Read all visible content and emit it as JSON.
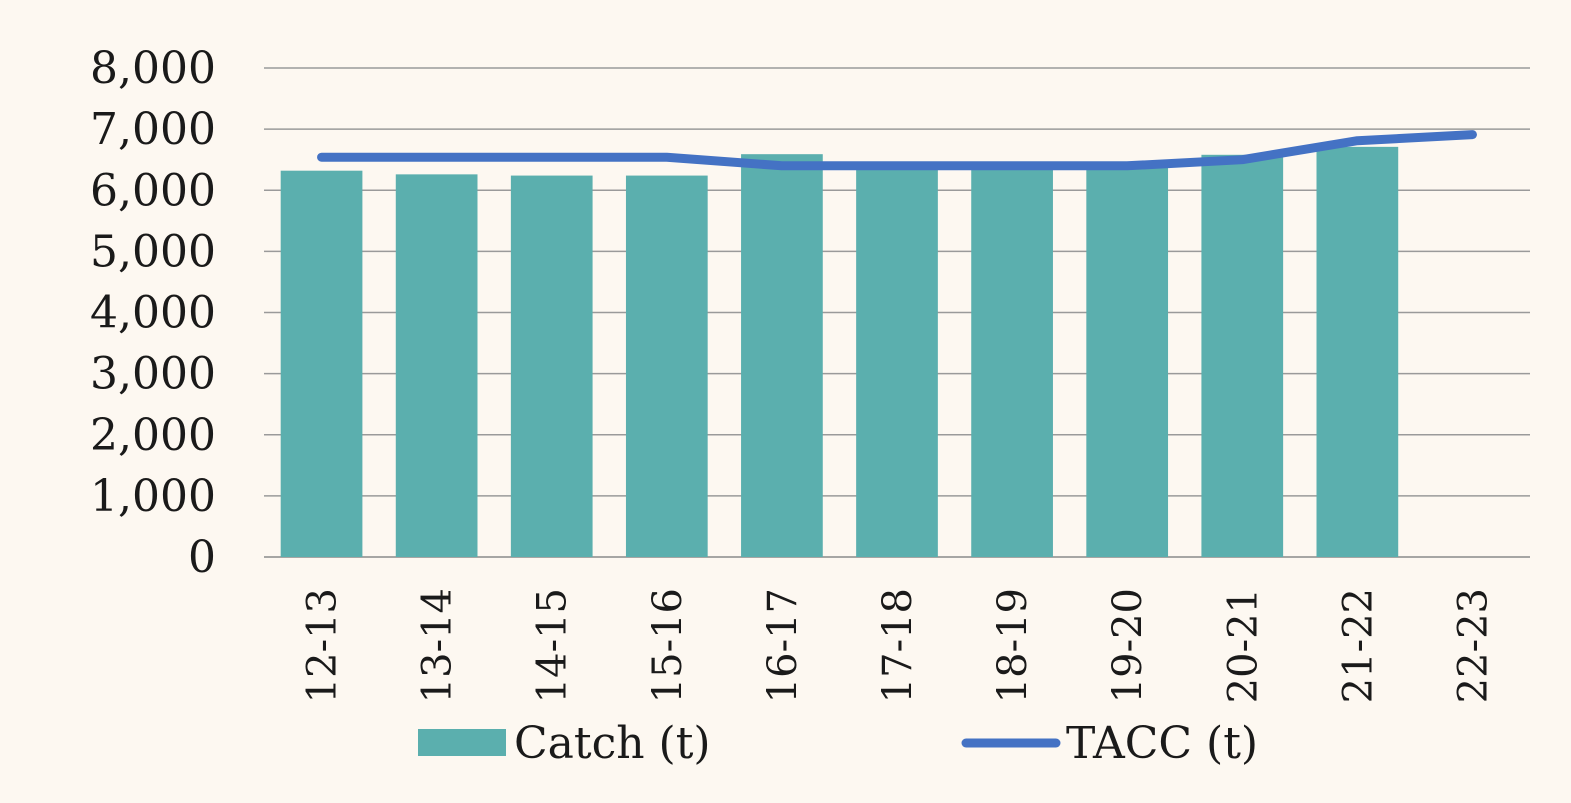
{
  "chart_data": {
    "type": "bar",
    "categories": [
      "12-13",
      "13-14",
      "14-15",
      "15-16",
      "16-17",
      "17-18",
      "18-19",
      "19-20",
      "20-21",
      "21-22",
      "22-23"
    ],
    "series": [
      {
        "name": "Catch (t)",
        "type": "bar",
        "color": "#5bafae",
        "values": [
          6320,
          6260,
          6240,
          6240,
          6590,
          6430,
          6420,
          6420,
          6580,
          6710,
          null
        ]
      },
      {
        "name": "TACC (t)",
        "type": "line",
        "color": "#4472c4",
        "values": [
          6540,
          6540,
          6540,
          6540,
          6400,
          6400,
          6400,
          6400,
          6500,
          6810,
          6910
        ]
      }
    ],
    "ylim": [
      0,
      8000
    ],
    "yticks": [
      0,
      1000,
      2000,
      3000,
      4000,
      5000,
      6000,
      7000,
      8000
    ],
    "ytick_labels": [
      "0",
      "1,000",
      "2,000",
      "3,000",
      "4,000",
      "5,000",
      "6,000",
      "7,000",
      "8,000"
    ],
    "grid": true,
    "legend": "bottom",
    "xlabel": "",
    "ylabel": "",
    "title": ""
  }
}
